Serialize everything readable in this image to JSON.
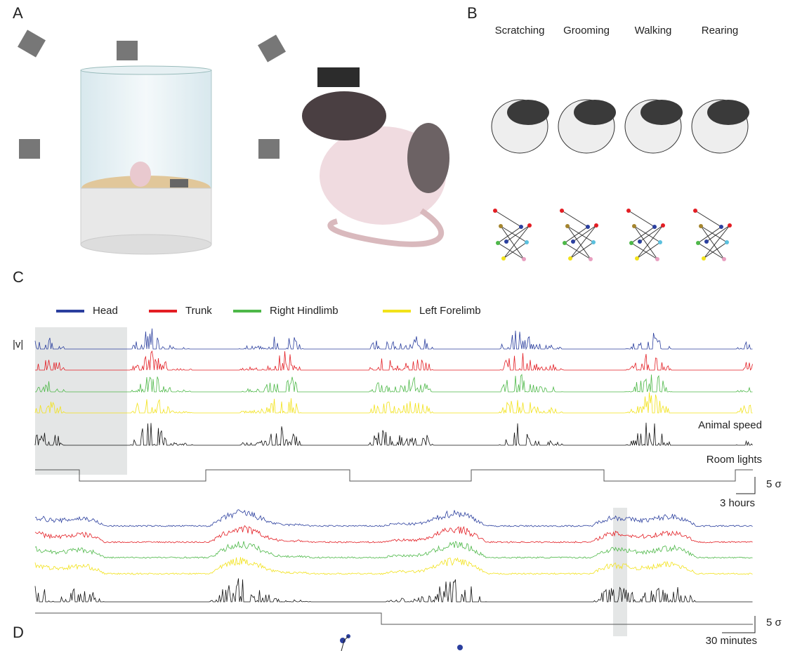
{
  "panels": {
    "a": {
      "label": "A"
    },
    "b": {
      "label": "B",
      "behaviors": [
        "Scratching",
        "Grooming",
        "Walking",
        "Rearing"
      ]
    },
    "c": {
      "label": "C",
      "legend": [
        {
          "name": "Head",
          "color": "#2b3f9e"
        },
        {
          "name": "Trunk",
          "color": "#e31e24"
        },
        {
          "name": "Right Hindlimb",
          "color": "#4db848"
        },
        {
          "name": "Left Forelimb",
          "color": "#f2e21a"
        }
      ],
      "velocity_label": "|v|",
      "speed_label": "Animal speed",
      "lights_label": "Room lights",
      "scale_bars": [
        {
          "y": "5 σ",
          "x": "3 hours"
        },
        {
          "y": "5 σ",
          "x": "30 minutes"
        }
      ]
    },
    "d": {
      "label": "D"
    }
  }
}
